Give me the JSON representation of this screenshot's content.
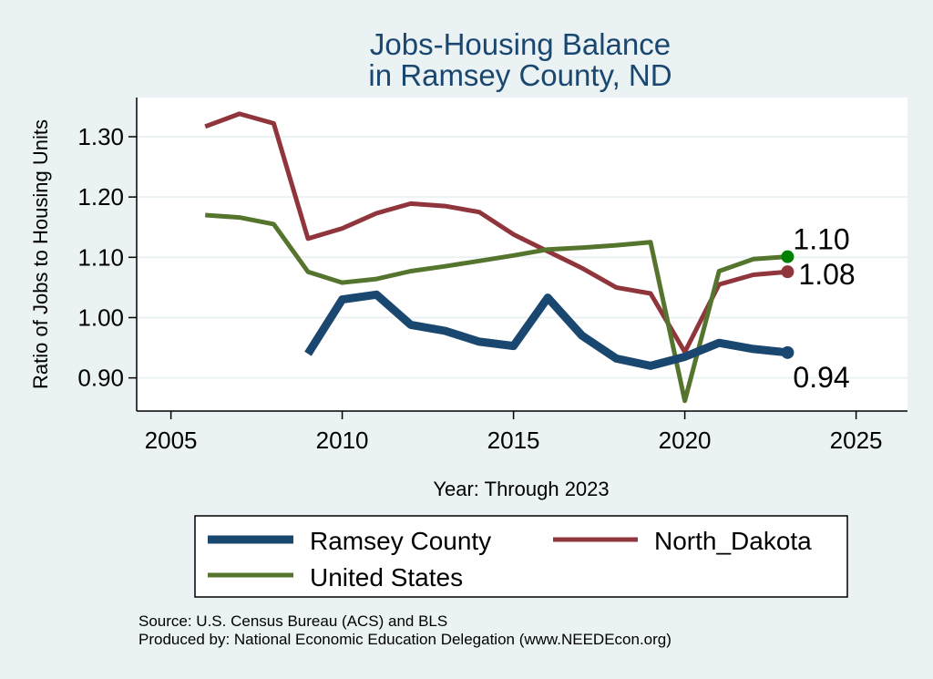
{
  "chart_data": {
    "type": "line",
    "title": "Jobs-Housing Balance",
    "subtitle": "in Ramsey County, ND",
    "xlabel": "Year: Through 2023",
    "ylabel": "Ratio of Jobs to Housing Units",
    "xlim": [
      2004,
      2026.5
    ],
    "ylim": [
      0.845,
      1.365
    ],
    "xticks": [
      2005,
      2010,
      2015,
      2020,
      2025
    ],
    "yticks": [
      0.9,
      1.0,
      1.1,
      1.2,
      1.3
    ],
    "ytick_labels": [
      "0.90",
      "1.00",
      "1.10",
      "1.20",
      "1.30"
    ],
    "grid": true,
    "legend_position": "bottom",
    "series": [
      {
        "name": "Ramsey County",
        "color": "#1a476f",
        "line_width": 9,
        "x": [
          2009,
          2010,
          2011,
          2012,
          2013,
          2014,
          2015,
          2016,
          2017,
          2018,
          2019,
          2020,
          2021,
          2022,
          2023
        ],
        "values": [
          0.94,
          1.03,
          1.038,
          0.988,
          0.978,
          0.96,
          0.953,
          1.033,
          0.97,
          0.932,
          0.92,
          0.935,
          0.958,
          0.948,
          0.942
        ],
        "end_label": "0.94"
      },
      {
        "name": "North_Dakota",
        "color": "#90353b",
        "line_width": 5,
        "x": [
          2006,
          2007,
          2008,
          2009,
          2010,
          2011,
          2012,
          2013,
          2014,
          2015,
          2016,
          2017,
          2018,
          2019,
          2020,
          2021,
          2022,
          2023
        ],
        "values": [
          1.317,
          1.338,
          1.322,
          1.131,
          1.148,
          1.173,
          1.189,
          1.185,
          1.175,
          1.138,
          1.11,
          1.082,
          1.05,
          1.04,
          0.943,
          1.055,
          1.071,
          1.076
        ],
        "end_label": "1.08"
      },
      {
        "name": "United States",
        "color": "#55752f",
        "end_color": "#008000",
        "line_width": 5,
        "x": [
          2006,
          2007,
          2008,
          2009,
          2010,
          2011,
          2012,
          2013,
          2014,
          2015,
          2016,
          2017,
          2018,
          2019,
          2020,
          2021,
          2022,
          2023
        ],
        "values": [
          1.17,
          1.166,
          1.155,
          1.076,
          1.058,
          1.064,
          1.077,
          1.085,
          1.094,
          1.103,
          1.113,
          1.116,
          1.12,
          1.125,
          0.862,
          1.077,
          1.097,
          1.101
        ],
        "end_label": "1.10"
      }
    ]
  },
  "source_note": "Source: U.S. Census Bureau (ACS) and BLS",
  "producer_note": "Produced by: National Economic Education Delegation (www.NEEDEcon.org)"
}
